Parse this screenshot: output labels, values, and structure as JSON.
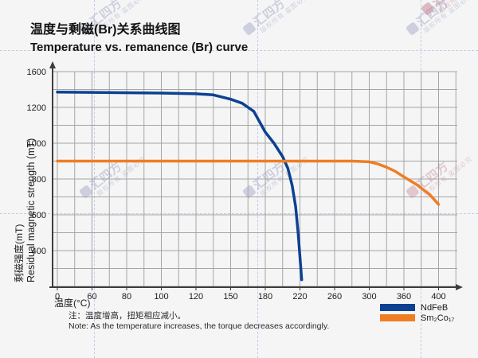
{
  "header": {
    "title_zh": "温度与剩磁(Br)关系曲线图",
    "title_en": "Temperature vs. remanence (Br) curve"
  },
  "chart_data": {
    "type": "line",
    "title": "Temperature vs. remanence (Br) curve",
    "grid": true,
    "legend_position": "bottom-right",
    "x_axis": {
      "label": "温度(°C)",
      "tick_labels": [
        0,
        60,
        80,
        100,
        120,
        150,
        180,
        220,
        260,
        300,
        360,
        400
      ]
    },
    "y_axis": {
      "label_zh": "剩磁强度(mT)",
      "label_en": "Residual magnetic strength (mT)",
      "tick_labels": [
        1600,
        1200,
        1000,
        800,
        600,
        400
      ],
      "origin_label": 0
    },
    "series": [
      {
        "name": "NdFeB",
        "color": "#0d4191",
        "points": [
          [
            0,
            1372
          ],
          [
            60,
            1368
          ],
          [
            100,
            1360
          ],
          [
            120,
            1352
          ],
          [
            135,
            1340
          ],
          [
            150,
            1292
          ],
          [
            160,
            1246
          ],
          [
            170,
            1178
          ],
          [
            180,
            1062
          ],
          [
            190,
            1000
          ],
          [
            200,
            925
          ],
          [
            206,
            860
          ],
          [
            211,
            765
          ],
          [
            215,
            645
          ],
          [
            218,
            495
          ],
          [
            220,
            330
          ],
          [
            222,
            75
          ]
        ]
      },
      {
        "name": "Sm₂Co₁₇",
        "color": "#ee7d23",
        "points": [
          [
            0,
            900
          ],
          [
            60,
            900
          ],
          [
            120,
            900
          ],
          [
            180,
            900
          ],
          [
            240,
            900
          ],
          [
            280,
            900
          ],
          [
            300,
            896
          ],
          [
            315,
            884
          ],
          [
            330,
            866
          ],
          [
            345,
            843
          ],
          [
            360,
            812
          ],
          [
            375,
            768
          ],
          [
            390,
            712
          ],
          [
            400,
            658
          ]
        ]
      }
    ]
  },
  "note": {
    "zh": "注：温度增高，扭矩相应减小。",
    "en": "Note: As the temperature increases, the torque decreases accordingly."
  },
  "watermark": {
    "brand": "汇四方",
    "caption": "版权所有 盗图必究"
  }
}
